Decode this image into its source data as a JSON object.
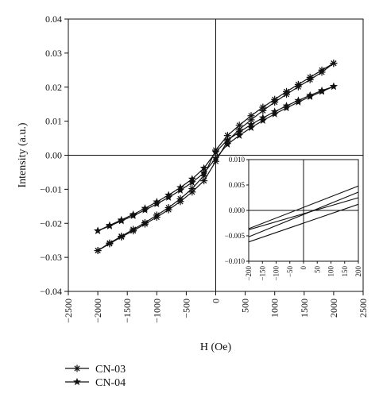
{
  "chart_data": {
    "type": "line",
    "main": {
      "xlabel": "H (Oe)",
      "ylabel": "Intensity (a.u.)",
      "xlim": [
        -2500,
        2500
      ],
      "ylim": [
        -0.04,
        0.04
      ],
      "xticks": [
        -2500,
        -2000,
        -1500,
        -1000,
        -500,
        0,
        500,
        1000,
        1500,
        2000,
        2500
      ],
      "xtick_labels": [
        "−2500",
        "−2000",
        "−1500",
        "−1000",
        "−500",
        "0",
        "500",
        "1000",
        "1500",
        "2000",
        "2500"
      ],
      "yticks": [
        -0.04,
        -0.03,
        -0.02,
        -0.01,
        0.0,
        0.01,
        0.02,
        0.03,
        0.04
      ],
      "ytick_labels": [
        "−0.04",
        "−0.03",
        "−0.02",
        "−0.01",
        "0.00",
        "0.01",
        "0.02",
        "0.03",
        "0.04"
      ],
      "grid": false,
      "zero_lines": true,
      "series": [
        {
          "name": "CN-03",
          "marker": "asterisk",
          "upper_branch": {
            "x": [
              -2000,
              -1800,
              -1600,
              -1400,
              -1200,
              -1000,
              -800,
              -600,
              -400,
              -200,
              0,
              200,
              400,
              600,
              800,
              1000,
              1200,
              1400,
              1600,
              1800,
              2000
            ],
            "y": [
              -0.028,
              -0.0258,
              -0.0238,
              -0.0218,
              -0.0198,
              -0.0176,
              -0.0154,
              -0.0128,
              -0.0098,
              -0.006,
              0.0015,
              0.0058,
              0.0088,
              0.0116,
              0.0141,
              0.0164,
              0.0187,
              0.0208,
              0.0229,
              0.025,
              0.027
            ]
          },
          "lower_branch": {
            "x": [
              -2000,
              -1800,
              -1600,
              -1400,
              -1200,
              -1000,
              -800,
              -600,
              -400,
              -200,
              0,
              200,
              400,
              600,
              800,
              1000,
              1200,
              1400,
              1600,
              1800,
              2000
            ],
            "y": [
              -0.028,
              -0.026,
              -0.024,
              -0.0222,
              -0.0202,
              -0.0182,
              -0.016,
              -0.0136,
              -0.0108,
              -0.0075,
              -0.0018,
              0.0042,
              0.0076,
              0.0104,
              0.0131,
              0.0156,
              0.0179,
              0.0201,
              0.0222,
              0.0244,
              0.027
            ]
          }
        },
        {
          "name": "CN-04",
          "marker": "star",
          "upper_branch": {
            "x": [
              -2000,
              -1800,
              -1600,
              -1400,
              -1200,
              -1000,
              -800,
              -600,
              -400,
              -200,
              0,
              200,
              400,
              600,
              800,
              1000,
              1200,
              1400,
              1600,
              1800,
              2000
            ],
            "y": [
              -0.0222,
              -0.0206,
              -0.019,
              -0.0174,
              -0.0156,
              -0.0137,
              -0.0117,
              -0.0095,
              -0.007,
              -0.0038,
              0.0009,
              0.0045,
              0.0068,
              0.009,
              0.011,
              0.0128,
              0.0145,
              0.0161,
              0.0176,
              0.019,
              0.0202
            ]
          },
          "lower_branch": {
            "x": [
              -2000,
              -1800,
              -1600,
              -1400,
              -1200,
              -1000,
              -800,
              -600,
              -400,
              -200,
              0,
              200,
              400,
              600,
              800,
              1000,
              1200,
              1400,
              1600,
              1800,
              2000
            ],
            "y": [
              -0.0222,
              -0.0208,
              -0.0193,
              -0.0178,
              -0.0161,
              -0.0143,
              -0.0124,
              -0.0103,
              -0.008,
              -0.0052,
              -0.0009,
              0.0032,
              0.0058,
              0.0081,
              0.0102,
              0.0121,
              0.0139,
              0.0156,
              0.0172,
              0.0187,
              0.0202
            ]
          }
        }
      ]
    },
    "inset": {
      "xlim": [
        -200,
        200
      ],
      "ylim": [
        -0.01,
        0.01
      ],
      "xticks": [
        -200,
        -150,
        -100,
        -50,
        0,
        50,
        100,
        150,
        200
      ],
      "xtick_labels": [
        "−200",
        "−150",
        "−100",
        "−50",
        "0",
        "50",
        "100",
        "150",
        "200"
      ],
      "yticks": [
        -0.01,
        -0.005,
        0.0,
        0.005,
        0.01
      ],
      "ytick_labels": [
        "−0.010",
        "−0.005",
        "0.000",
        "0.005",
        "0.010"
      ],
      "zero_lines": true,
      "lines": [
        {
          "x": [
            -200,
            200
          ],
          "y": [
            -0.0036,
            0.0048
          ]
        },
        {
          "x": [
            -200,
            200
          ],
          "y": [
            -0.0052,
            0.0036
          ]
        },
        {
          "x": [
            -200,
            200
          ],
          "y": [
            -0.0038,
            0.0025
          ]
        },
        {
          "x": [
            -200,
            200
          ],
          "y": [
            -0.0062,
            0.0012
          ]
        }
      ]
    },
    "legend": {
      "placement": "bottom-left",
      "entries": [
        {
          "label": "CN-03",
          "marker": "asterisk"
        },
        {
          "label": "CN-04",
          "marker": "star"
        }
      ]
    }
  }
}
